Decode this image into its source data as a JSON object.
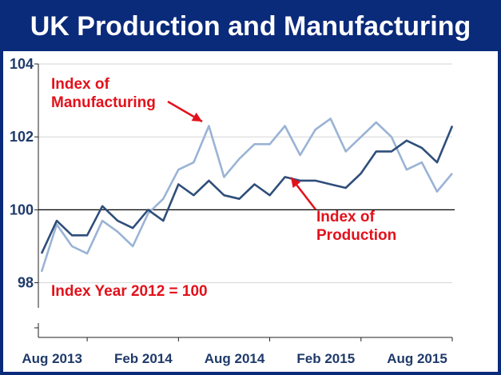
{
  "title": "UK Production and Manufacturing",
  "colors": {
    "frame": "#0a2a7a",
    "manufacturing": "#9ab3d5",
    "production": "#2f4e7a",
    "annotation": "#e3111b",
    "axis_text": "#1f3a6a"
  },
  "annotations": {
    "manufacturing_label_line1": "Index of",
    "manufacturing_label_line2": "Manufacturing",
    "production_label_line1": "Index of",
    "production_label_line2": "Production",
    "base_note": "Index Year 2012 = 100"
  },
  "chart_data": {
    "type": "line",
    "title": "UK Production and Manufacturing",
    "xlabel": "",
    "ylabel": "",
    "x": [
      "May 2013",
      "Jun 2013",
      "Jul 2013",
      "Aug 2013",
      "Sep 2013",
      "Oct 2013",
      "Nov 2013",
      "Dec 2013",
      "Jan 2014",
      "Feb 2014",
      "Mar 2014",
      "Apr 2014",
      "May 2014",
      "Jun 2014",
      "Jul 2014",
      "Aug 2014",
      "Sep 2014",
      "Oct 2014",
      "Nov 2014",
      "Dec 2014",
      "Jan 2015",
      "Feb 2015",
      "Mar 2015",
      "Apr 2015",
      "May 2015",
      "Jun 2015",
      "Jul 2015",
      "Aug 2015"
    ],
    "x_tick_labels": [
      "Aug 2013",
      "Feb 2014",
      "Aug 2014",
      "Feb 2015",
      "Aug 2015"
    ],
    "x_tick_indices": [
      3,
      9,
      15,
      21,
      27
    ],
    "ylim": [
      96.5,
      104
    ],
    "y_ticks": [
      98,
      100,
      102,
      104
    ],
    "y_tick_labels": [
      "98",
      "100",
      "102",
      "104"
    ],
    "reference_line": 100,
    "grid": "horizontal",
    "series": [
      {
        "name": "Index of Manufacturing",
        "values": [
          98.3,
          99.6,
          99.0,
          98.8,
          99.7,
          99.4,
          99.0,
          99.9,
          100.3,
          101.1,
          101.3,
          102.3,
          100.9,
          101.4,
          101.8,
          101.8,
          102.3,
          101.5,
          102.2,
          102.5,
          101.6,
          102.0,
          102.4,
          102.0,
          101.1,
          101.3,
          100.5,
          101.0
        ]
      },
      {
        "name": "Index of Production",
        "values": [
          98.8,
          99.7,
          99.3,
          99.3,
          100.1,
          99.7,
          99.5,
          100.0,
          99.7,
          100.7,
          100.4,
          100.8,
          100.4,
          100.3,
          100.7,
          100.4,
          100.9,
          100.8,
          100.8,
          100.7,
          100.6,
          101.0,
          101.6,
          101.6,
          101.9,
          101.7,
          101.3,
          102.3
        ]
      }
    ]
  }
}
